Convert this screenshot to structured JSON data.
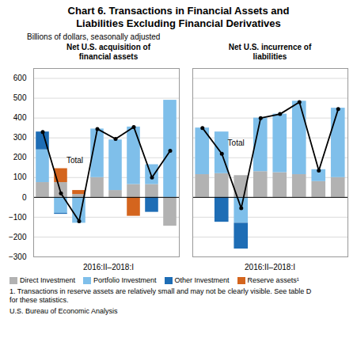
{
  "title": "Chart 6. Transactions in Financial Assets and\nLiabilities Excluding Financial Derivatives",
  "subtitle": "Billions of dollars, seasonally adjusted",
  "legend": "lower left",
  "annotations": [
    "1. Transactions in reserve assets are relatively small and may not be clearly visible. See table D",
    "for these statistics.",
    "U.S. Bureau of Economic Analysis"
  ],
  "chart_data": [
    {
      "type": "bar",
      "stacked": true,
      "title": "Net U.S. acquisition of\nfinancial assets",
      "xlabel": "2016:II–2018:I",
      "categories": [
        null,
        null,
        null,
        null,
        null,
        null,
        null,
        null
      ],
      "ylim": [
        -300,
        650
      ],
      "yticks": [
        -300,
        -200,
        -100,
        0,
        100,
        200,
        300,
        400,
        500,
        600
      ],
      "grid": true,
      "tick_labels": "y",
      "series": [
        {
          "name": "Direct Investment",
          "color": "#b2b2b2",
          "values": [
            75,
            75,
            15,
            100,
            35,
            65,
            65,
            -145
          ]
        },
        {
          "name": "Portfolio Investment",
          "color": "#7fbfea",
          "values": [
            165,
            -80,
            -130,
            245,
            255,
            290,
            100,
            490
          ]
        },
        {
          "name": "Other Investment",
          "color": "#1e6db5",
          "values": [
            90,
            -5,
            0,
            0,
            0,
            0,
            -75,
            0
          ]
        },
        {
          "name": "Reserve assets¹",
          "color": "#d4651e",
          "values": [
            0,
            70,
            20,
            0,
            0,
            -95,
            0,
            0
          ]
        },
        {
          "name": "Total",
          "type": "line",
          "color": "#000000",
          "marker": "circle",
          "values": [
            330,
            20,
            -120,
            345,
            295,
            355,
            100,
            235
          ]
        }
      ],
      "annotations": [
        {
          "text": "Total",
          "x": 1.3,
          "y": 175
        }
      ]
    },
    {
      "type": "bar",
      "stacked": true,
      "title": "Net U.S. incurrence of\nliabilities",
      "xlabel": "2016:II–2018:I",
      "categories": [
        null,
        null,
        null,
        null,
        null,
        null,
        null,
        null
      ],
      "ylim": [
        -300,
        650
      ],
      "yticks": [
        -300,
        -200,
        -100,
        0,
        100,
        200,
        300,
        400,
        500,
        600
      ],
      "grid": true,
      "tick_labels": false,
      "series": [
        {
          "name": "Direct Investment",
          "color": "#b2b2b2",
          "values": [
            115,
            120,
            110,
            130,
            125,
            115,
            80,
            100
          ]
        },
        {
          "name": "Portfolio Investment",
          "color": "#7fbfea",
          "values": [
            235,
            210,
            -130,
            270,
            295,
            370,
            60,
            350
          ]
        },
        {
          "name": "Other Investment",
          "color": "#1e6db5",
          "values": [
            0,
            -125,
            -130,
            0,
            0,
            0,
            0,
            0
          ]
        },
        {
          "name": "Reserve assets¹",
          "color": "#d4651e",
          "values": [
            0,
            0,
            0,
            0,
            0,
            0,
            0,
            0
          ]
        },
        {
          "name": "Total",
          "type": "line",
          "color": "#000000",
          "marker": "circle",
          "values": [
            350,
            220,
            -55,
            400,
            420,
            480,
            135,
            445
          ]
        }
      ],
      "annotations": [
        {
          "text": "Total",
          "x": 1.3,
          "y": 260
        }
      ]
    }
  ]
}
